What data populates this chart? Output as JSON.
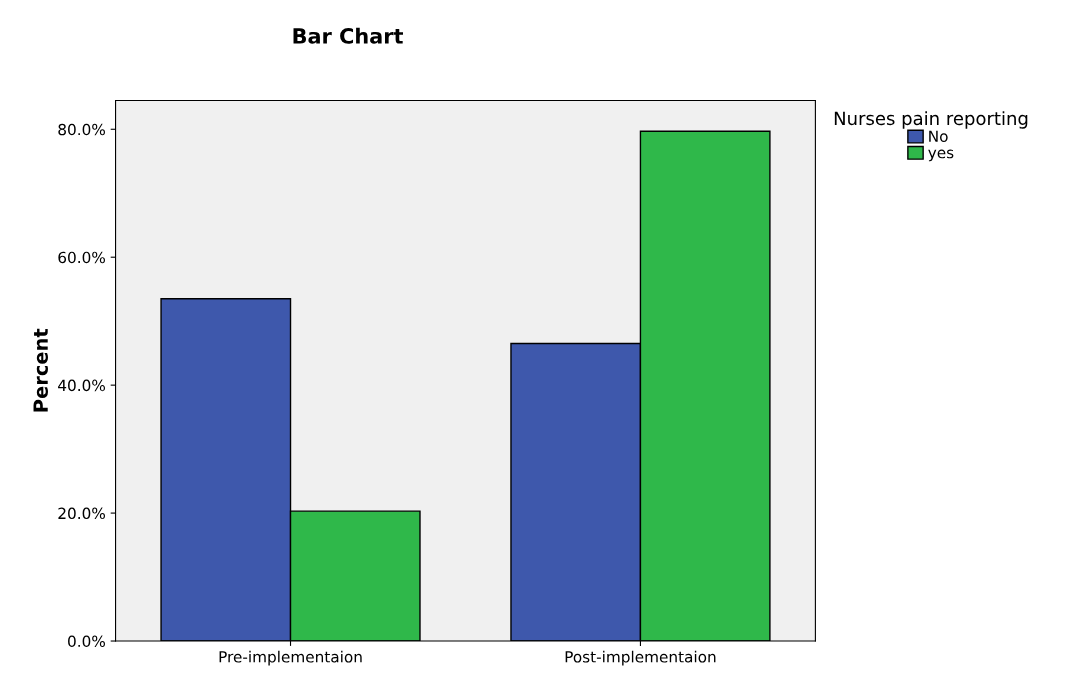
{
  "chart_data": {
    "type": "bar",
    "title": "Bar Chart",
    "ylabel": "Percent",
    "legend_title": "Nurses pain reporting",
    "categories": [
      "Pre-implementaion",
      "Post-implementaion"
    ],
    "series": [
      {
        "name": "No",
        "color": "#3e58ac",
        "values": [
          53.5,
          46.5
        ]
      },
      {
        "name": "yes",
        "color": "#2fb84a",
        "values": [
          20.3,
          79.7
        ]
      }
    ],
    "ylim": [
      0,
      84.5
    ],
    "yticks": [
      {
        "value": 0,
        "label": "0.0%"
      },
      {
        "value": 20,
        "label": "20.0%"
      },
      {
        "value": 40,
        "label": "40.0%"
      },
      {
        "value": 60,
        "label": "60.0%"
      },
      {
        "value": 80,
        "label": "80.0%"
      }
    ],
    "grid": false,
    "legend": "top right"
  }
}
